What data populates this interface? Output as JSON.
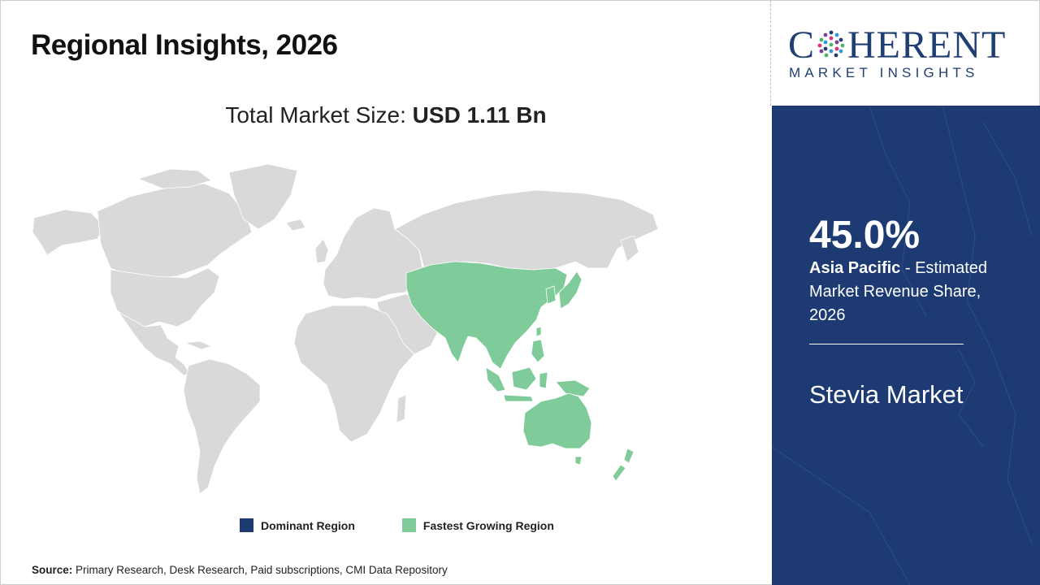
{
  "header": {
    "title": "Regional Insights, 2026"
  },
  "market_size": {
    "label": "Total Market Size:",
    "value": "USD 1.11 Bn"
  },
  "map": {
    "colors": {
      "default": "#d9d9d9",
      "dominant": "#1d3b72",
      "fastest_growing": "#7fcb9a"
    },
    "highlighted_region": "Asia Pacific",
    "highlight_type": "fastest_growing"
  },
  "legend": {
    "items": [
      {
        "label": "Dominant Region",
        "color": "#1d3b72"
      },
      {
        "label": "Fastest Growing Region",
        "color": "#7fcb9a"
      }
    ]
  },
  "source": {
    "label": "Source:",
    "text": "Primary Research, Desk Research, Paid subscriptions, CMI Data Repository"
  },
  "logo": {
    "line1_pre": "C",
    "line1_post": "HERENT",
    "line2": "MARKET INSIGHTS"
  },
  "panel": {
    "share": "45.0%",
    "region": "Asia Pacific",
    "description": " - Estimated Market Revenue Share, 2026",
    "market_name": "Stevia Market",
    "background": "#1d3b72"
  }
}
